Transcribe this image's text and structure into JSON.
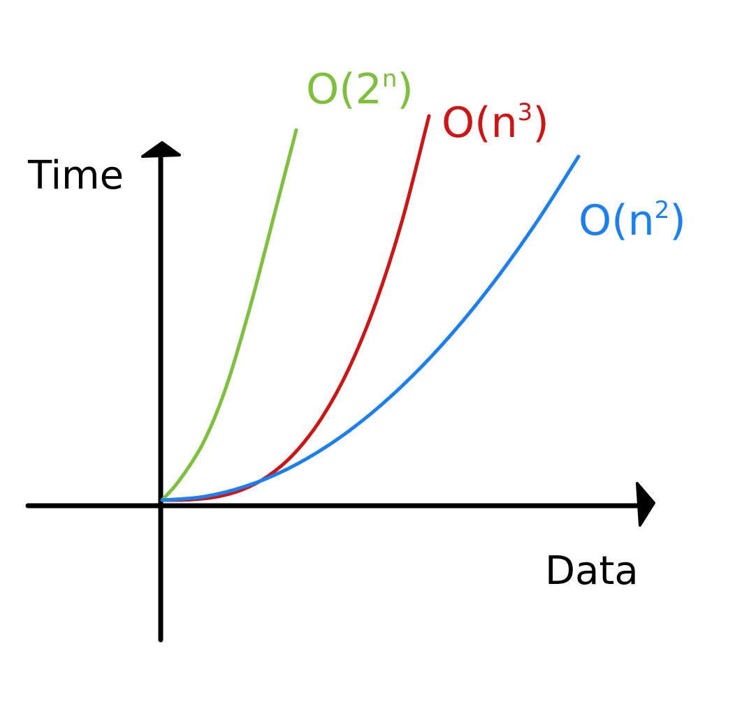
{
  "chart_data": {
    "type": "line",
    "title": "",
    "xlabel": "Data",
    "ylabel": "Time",
    "grid": false,
    "legend": "none",
    "series": [
      {
        "name": "O(2ⁿ)",
        "label_base": "O(2",
        "label_sup": "n",
        "label_close": ")",
        "color": "#7dc13a",
        "x": [
          0,
          0.1,
          0.2,
          0.3,
          0.4,
          0.5,
          0.6,
          0.7,
          0.8,
          0.9,
          1.0
        ],
        "y": [
          0,
          0.04,
          0.09,
          0.15,
          0.23,
          0.33,
          0.45,
          0.58,
          0.72,
          0.86,
          1.0
        ]
      },
      {
        "name": "O(n³)",
        "label_base": "O(n",
        "label_sup": "3",
        "label_close": ")",
        "color": "#d01414",
        "x": [
          0,
          0.1,
          0.2,
          0.3,
          0.4,
          0.5,
          0.6,
          0.7,
          0.8,
          0.9,
          1.0
        ],
        "y": [
          0,
          0.001,
          0.008,
          0.027,
          0.064,
          0.125,
          0.216,
          0.343,
          0.512,
          0.729,
          1.0
        ]
      },
      {
        "name": "O(n²)",
        "label_base": "O(n",
        "label_sup": "2",
        "label_close": ")",
        "color": "#1a7ff0",
        "x": [
          0,
          0.1,
          0.2,
          0.3,
          0.4,
          0.5,
          0.6,
          0.7,
          0.8,
          0.9,
          1.0
        ],
        "y": [
          0,
          0.01,
          0.04,
          0.09,
          0.16,
          0.25,
          0.36,
          0.49,
          0.64,
          0.81,
          1.0
        ]
      }
    ]
  }
}
